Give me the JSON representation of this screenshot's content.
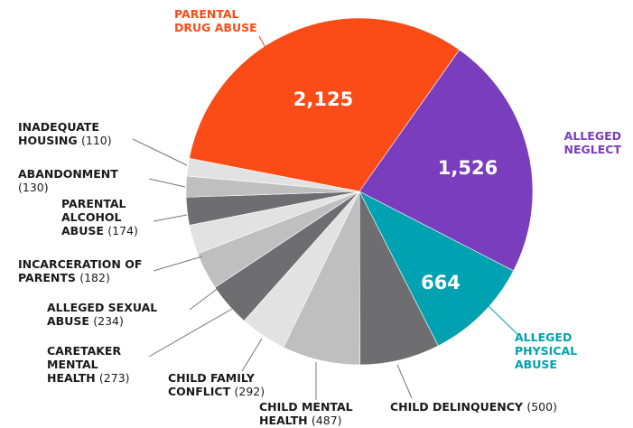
{
  "chart_data": {
    "type": "pie",
    "categories": [
      "PARENTAL DRUG ABUSE",
      "ALLEGED NEGLECT",
      "ALLEGED PHYSICAL ABUSE",
      "CHILD DELINQUENCY",
      "CHILD MENTAL HEALTH",
      "CHILD FAMILY CONFLICT",
      "CARETAKER MENTAL HEALTH",
      "ALLEGED SEXUAL ABUSE",
      "INCARCERATION OF PARENTS",
      "PARENTAL ALCOHOL ABUSE",
      "ABANDONMENT",
      "INADEQUATE HOUSING"
    ],
    "values": [
      2125,
      1526,
      664,
      500,
      487,
      292,
      273,
      234,
      182,
      174,
      130,
      110
    ],
    "value_labels": [
      "2,125",
      "1,526",
      "664",
      "(500)",
      "(487)",
      "(292)",
      "(273)",
      "(234)",
      "(182)",
      "(174)",
      "(130)",
      "(110)"
    ],
    "colors": [
      "#fb4b17",
      "#7a3dbd",
      "#00a2b2",
      "#6e6e71",
      "#bfbfbf",
      "#e2e2e2",
      "#6e6e71",
      "#bfbfbf",
      "#e2e2e2",
      "#6e6e71",
      "#bfbfbf",
      "#e2e2e2"
    ]
  }
}
